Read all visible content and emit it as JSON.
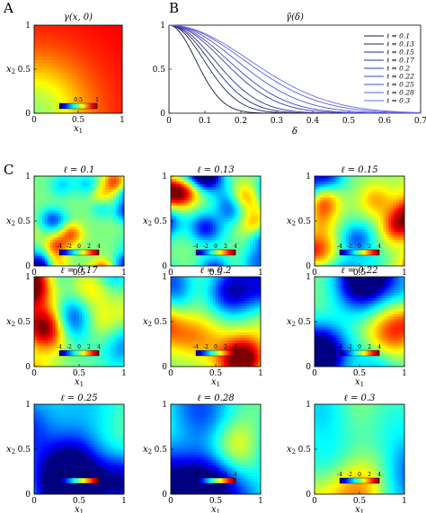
{
  "panel_labels": [
    "A",
    "B",
    "C"
  ],
  "chart_data": [
    {
      "type": "heatmap",
      "panel": "A",
      "title": "γ(x, 0)",
      "xlabel": "x1",
      "ylabel": "x2",
      "x_ticks": [
        "0",
        "0.5",
        "1"
      ],
      "y_ticks": [
        "0",
        "0.5",
        "1"
      ],
      "xlim": [
        0,
        1
      ],
      "ylim": [
        0,
        1
      ],
      "colorbar": {
        "range": [
          0,
          1
        ],
        "tick_labels": [
          "0.5",
          "1"
        ]
      },
      "description_values": {
        "value_at_origin": 0.0,
        "value_at_far_corner": 1.0
      }
    },
    {
      "type": "line",
      "panel": "B",
      "title": "γ̃(δ)",
      "xlabel": "δ",
      "ylabel": "",
      "xlim": [
        0,
        0.7
      ],
      "ylim": [
        0,
        1
      ],
      "x_ticks": [
        "0",
        "0.1",
        "0.2",
        "0.3",
        "0.4",
        "0.5",
        "0.6",
        "0.7"
      ],
      "y_ticks": [
        "0",
        "0.5",
        "1"
      ],
      "legend_position": "right",
      "series_colors": [
        "#1a1a3a",
        "#23235a",
        "#2b2b7a",
        "#33339a",
        "#3b3bb4",
        "#4646c4",
        "#5252d0",
        "#5e5edc",
        "#6a6ae6"
      ],
      "series": [
        {
          "name": "ℓ = 0.1",
          "ell": 0.1
        },
        {
          "name": "ℓ = 0.13",
          "ell": 0.13
        },
        {
          "name": "ℓ = 0.15",
          "ell": 0.15
        },
        {
          "name": "ℓ = 0.17",
          "ell": 0.17
        },
        {
          "name": "ℓ = 0.2",
          "ell": 0.2
        },
        {
          "name": "ℓ = 0.22",
          "ell": 0.22
        },
        {
          "name": "ℓ = 0.25",
          "ell": 0.25
        },
        {
          "name": "ℓ = 0.28",
          "ell": 0.28
        },
        {
          "name": "ℓ = 0.3",
          "ell": 0.3
        }
      ]
    },
    {
      "type": "heatmap",
      "panel": "C",
      "xlabel": "x1",
      "ylabel": "x2",
      "x_ticks": [
        "0",
        "0.5",
        "1"
      ],
      "y_ticks": [
        "0",
        "0.5",
        "1"
      ],
      "xlim": [
        0,
        1
      ],
      "ylim": [
        0,
        1
      ],
      "colorbar": {
        "range": [
          -4,
          4
        ],
        "tick_labels": [
          "-4",
          "-2",
          "0",
          "2",
          "4"
        ]
      },
      "subplots": [
        {
          "title": "ℓ = 0.1",
          "ell": 0.1
        },
        {
          "title": "ℓ = 0.13",
          "ell": 0.13
        },
        {
          "title": "ℓ = 0.15",
          "ell": 0.15
        },
        {
          "title": "ℓ = 0.17",
          "ell": 0.17
        },
        {
          "title": "ℓ = 0.2",
          "ell": 0.2
        },
        {
          "title": "ℓ = 0.22",
          "ell": 0.22
        },
        {
          "title": "ℓ = 0.25",
          "ell": 0.25
        },
        {
          "title": "ℓ = 0.28",
          "ell": 0.28
        },
        {
          "title": "ℓ = 0.3",
          "ell": 0.3
        }
      ]
    }
  ]
}
